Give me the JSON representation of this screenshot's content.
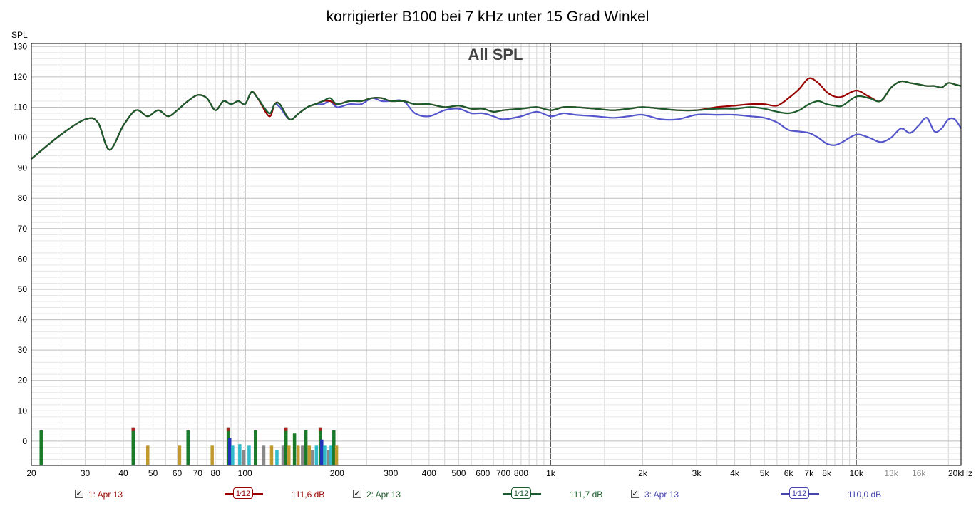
{
  "chart_data": {
    "type": "line",
    "title": "korrigierter B100 bei 7 kHz unter 15 Grad Winkel",
    "overlay_label": "All SPL",
    "ylabel": "SPL",
    "xlabel": "",
    "x_scale": "log",
    "xlim": [
      20,
      22000
    ],
    "ylim": [
      -8,
      131
    ],
    "y_ticks": [
      "130",
      "120",
      "110",
      "100",
      "90",
      "80",
      "70",
      "60",
      "50",
      "40",
      "30",
      "20",
      "10",
      "0"
    ],
    "x_ticks": [
      {
        "f": 20,
        "label": "20"
      },
      {
        "f": 30,
        "label": "30"
      },
      {
        "f": 40,
        "label": "40"
      },
      {
        "f": 50,
        "label": "50"
      },
      {
        "f": 60,
        "label": "60"
      },
      {
        "f": 70,
        "label": "70"
      },
      {
        "f": 80,
        "label": "80"
      },
      {
        "f": 100,
        "label": "100"
      },
      {
        "f": 200,
        "label": "200"
      },
      {
        "f": 300,
        "label": "300"
      },
      {
        "f": 400,
        "label": "400"
      },
      {
        "f": 500,
        "label": "500"
      },
      {
        "f": 600,
        "label": "600"
      },
      {
        "f": 700,
        "label": "700"
      },
      {
        "f": 800,
        "label": "800"
      },
      {
        "f": 1000,
        "label": "1k"
      },
      {
        "f": 2000,
        "label": "2k"
      },
      {
        "f": 3000,
        "label": "3k"
      },
      {
        "f": 4000,
        "label": "4k"
      },
      {
        "f": 5000,
        "label": "5k"
      },
      {
        "f": 6000,
        "label": "6k"
      },
      {
        "f": 7000,
        "label": "7k"
      },
      {
        "f": 8000,
        "label": "8k"
      },
      {
        "f": 10000,
        "label": "10k"
      },
      {
        "f": 13000,
        "label": "13k",
        "gray": true
      },
      {
        "f": 16000,
        "label": "16k",
        "gray": true
      },
      {
        "f": 20000,
        "label": "20kHz"
      }
    ],
    "grid": true,
    "colors": {
      "series1": "#990000",
      "series2": "#1c5c2c",
      "series3": "#5555cc",
      "grid_minor": "#d4d4d4",
      "grid_major": "#555555"
    },
    "x": [
      20,
      25,
      30,
      33,
      36,
      40,
      44,
      48,
      52,
      56,
      60,
      65,
      70,
      75,
      80,
      85,
      90,
      95,
      100,
      105,
      110,
      120,
      125,
      130,
      140,
      150,
      160,
      170,
      180,
      190,
      200,
      220,
      240,
      260,
      280,
      300,
      330,
      360,
      400,
      450,
      500,
      550,
      600,
      650,
      700,
      800,
      900,
      1000,
      1100,
      1200,
      1400,
      1600,
      1800,
      2000,
      2300,
      2600,
      3000,
      3500,
      4000,
      4500,
      5000,
      5500,
      6000,
      6500,
      7000,
      7500,
      8000,
      8500,
      9000,
      10000,
      11000,
      12000,
      13000,
      14000,
      15000,
      16000,
      17000,
      18000,
      19000,
      20000,
      21000,
      22000
    ],
    "series": [
      {
        "values": [
          93,
          101,
          106,
          105,
          96,
          104,
          109,
          107,
          109,
          107,
          109,
          112,
          114,
          113,
          109,
          112,
          111,
          112,
          111,
          115,
          113,
          107,
          111,
          111,
          106,
          108,
          110,
          111,
          112,
          112,
          111,
          112,
          112,
          113,
          113,
          112,
          112,
          111,
          111,
          110,
          110.5,
          109.5,
          109.5,
          108.5,
          109,
          109.5,
          110,
          109,
          110,
          110,
          109.5,
          109,
          109.5,
          110,
          109.5,
          109,
          109,
          110,
          110.5,
          111,
          111,
          110.5,
          113,
          116,
          119.5,
          118,
          115,
          113.5,
          113.5,
          115.5,
          113.5,
          112,
          116.5,
          118.5,
          118,
          117.5,
          117,
          117,
          116.5,
          118,
          117.5,
          117
        ]
      },
      {
        "values": [
          93,
          101,
          106,
          105,
          96,
          104,
          109,
          107,
          109,
          107,
          109,
          112,
          114,
          113,
          109,
          112,
          111,
          112,
          111,
          115,
          113,
          108,
          111,
          111,
          106,
          108,
          110,
          111,
          112,
          113,
          111,
          112,
          112,
          113,
          113,
          112,
          112,
          111,
          111,
          110,
          110.5,
          109.5,
          109.5,
          108.5,
          109,
          109.5,
          110,
          109,
          110,
          110,
          109.5,
          109,
          109.5,
          110,
          109.5,
          109,
          109,
          109.5,
          109.5,
          110,
          109.5,
          108.5,
          108,
          109,
          111,
          112,
          111,
          110.5,
          110.5,
          113.5,
          113,
          112,
          116.5,
          118.5,
          118,
          117.5,
          117,
          117,
          116.5,
          118,
          117.5,
          117
        ]
      },
      {
        "values": [
          93,
          101,
          106,
          105,
          96,
          104,
          109,
          107,
          109,
          107,
          109,
          112,
          114,
          113,
          109,
          112,
          111,
          112,
          111,
          115,
          113,
          108,
          111,
          110,
          106,
          108,
          110,
          111,
          111,
          112,
          110,
          111,
          111,
          113,
          112,
          112,
          112,
          108,
          107,
          109,
          109.5,
          108,
          108,
          107,
          106,
          107,
          108.5,
          107,
          108,
          107.5,
          107,
          106.5,
          107,
          107.5,
          106,
          106,
          107.5,
          107.5,
          107.5,
          107,
          106.5,
          105,
          102.5,
          102,
          101.5,
          100,
          98,
          97.5,
          98.5,
          101,
          100,
          98.5,
          100,
          103,
          101.5,
          104,
          106.5,
          102,
          103,
          106,
          106,
          103
        ]
      }
    ],
    "bars": [
      {
        "f": 21.5,
        "h": 3.5,
        "c": "#1a7a2a"
      },
      {
        "f": 43,
        "h": 4.5,
        "c": "#1a7a2a",
        "cap": "#aa2222"
      },
      {
        "f": 48,
        "h": -1.5,
        "c": "#c09a30"
      },
      {
        "f": 61,
        "h": -1.5,
        "c": "#c09a30"
      },
      {
        "f": 65,
        "h": 3.5,
        "c": "#1a7a2a"
      },
      {
        "f": 78,
        "h": -1.5,
        "c": "#c09a30"
      },
      {
        "f": 88,
        "h": 4.5,
        "c": "#1a7a2a",
        "cap": "#aa2222"
      },
      {
        "f": 89,
        "h": 1.0,
        "c": "#2233bb"
      },
      {
        "f": 91,
        "h": -1.5,
        "c": "#33bbcc"
      },
      {
        "f": 96,
        "h": -1.0,
        "c": "#33bbcc"
      },
      {
        "f": 99,
        "h": -3.0,
        "c": "#888888"
      },
      {
        "f": 103,
        "h": -1.5,
        "c": "#33bbcc"
      },
      {
        "f": 108,
        "h": 3.5,
        "c": "#1a7a2a"
      },
      {
        "f": 115,
        "h": -1.5,
        "c": "#888888"
      },
      {
        "f": 122,
        "h": -1.5,
        "c": "#c09a30"
      },
      {
        "f": 127,
        "h": -3.0,
        "c": "#33bbcc"
      },
      {
        "f": 133,
        "h": -1.5,
        "c": "#888888"
      },
      {
        "f": 136,
        "h": 4.5,
        "c": "#1a7a2a",
        "cap": "#aa2222"
      },
      {
        "f": 139,
        "h": -1.5,
        "c": "#c09a30"
      },
      {
        "f": 145,
        "h": 2.5,
        "c": "#1a7a2a"
      },
      {
        "f": 149,
        "h": -1.5,
        "c": "#c09a30"
      },
      {
        "f": 154,
        "h": -1.5,
        "c": "#888888"
      },
      {
        "f": 158,
        "h": 3.5,
        "c": "#1a7a2a"
      },
      {
        "f": 162,
        "h": -1.5,
        "c": "#c09a30"
      },
      {
        "f": 166,
        "h": -3.0,
        "c": "#888888"
      },
      {
        "f": 171,
        "h": -1.5,
        "c": "#33bbcc"
      },
      {
        "f": 176,
        "h": 4.5,
        "c": "#1a7a2a",
        "cap": "#aa2222"
      },
      {
        "f": 178,
        "h": 0.5,
        "c": "#2233bb"
      },
      {
        "f": 182,
        "h": -1.5,
        "c": "#33bbcc"
      },
      {
        "f": 187,
        "h": -3.0,
        "c": "#888888"
      },
      {
        "f": 191,
        "h": -1.5,
        "c": "#33bbcc"
      },
      {
        "f": 195,
        "h": 3.5,
        "c": "#1a7a2a"
      },
      {
        "f": 199,
        "h": -1.5,
        "c": "#c09a30"
      }
    ]
  },
  "legend": [
    {
      "check": "✓",
      "label": "1: Apr 13",
      "smooth": "1⁄12",
      "level": "111,6 dB",
      "color": "#990000"
    },
    {
      "check": "✓",
      "label": "2: Apr 13",
      "smooth": "1⁄12",
      "level": "111,7 dB",
      "color": "#1c5c2c"
    },
    {
      "check": "✓",
      "label": "3: Apr 13",
      "smooth": "1⁄12",
      "level": "110,0 dB",
      "color": "#4444aa"
    }
  ]
}
